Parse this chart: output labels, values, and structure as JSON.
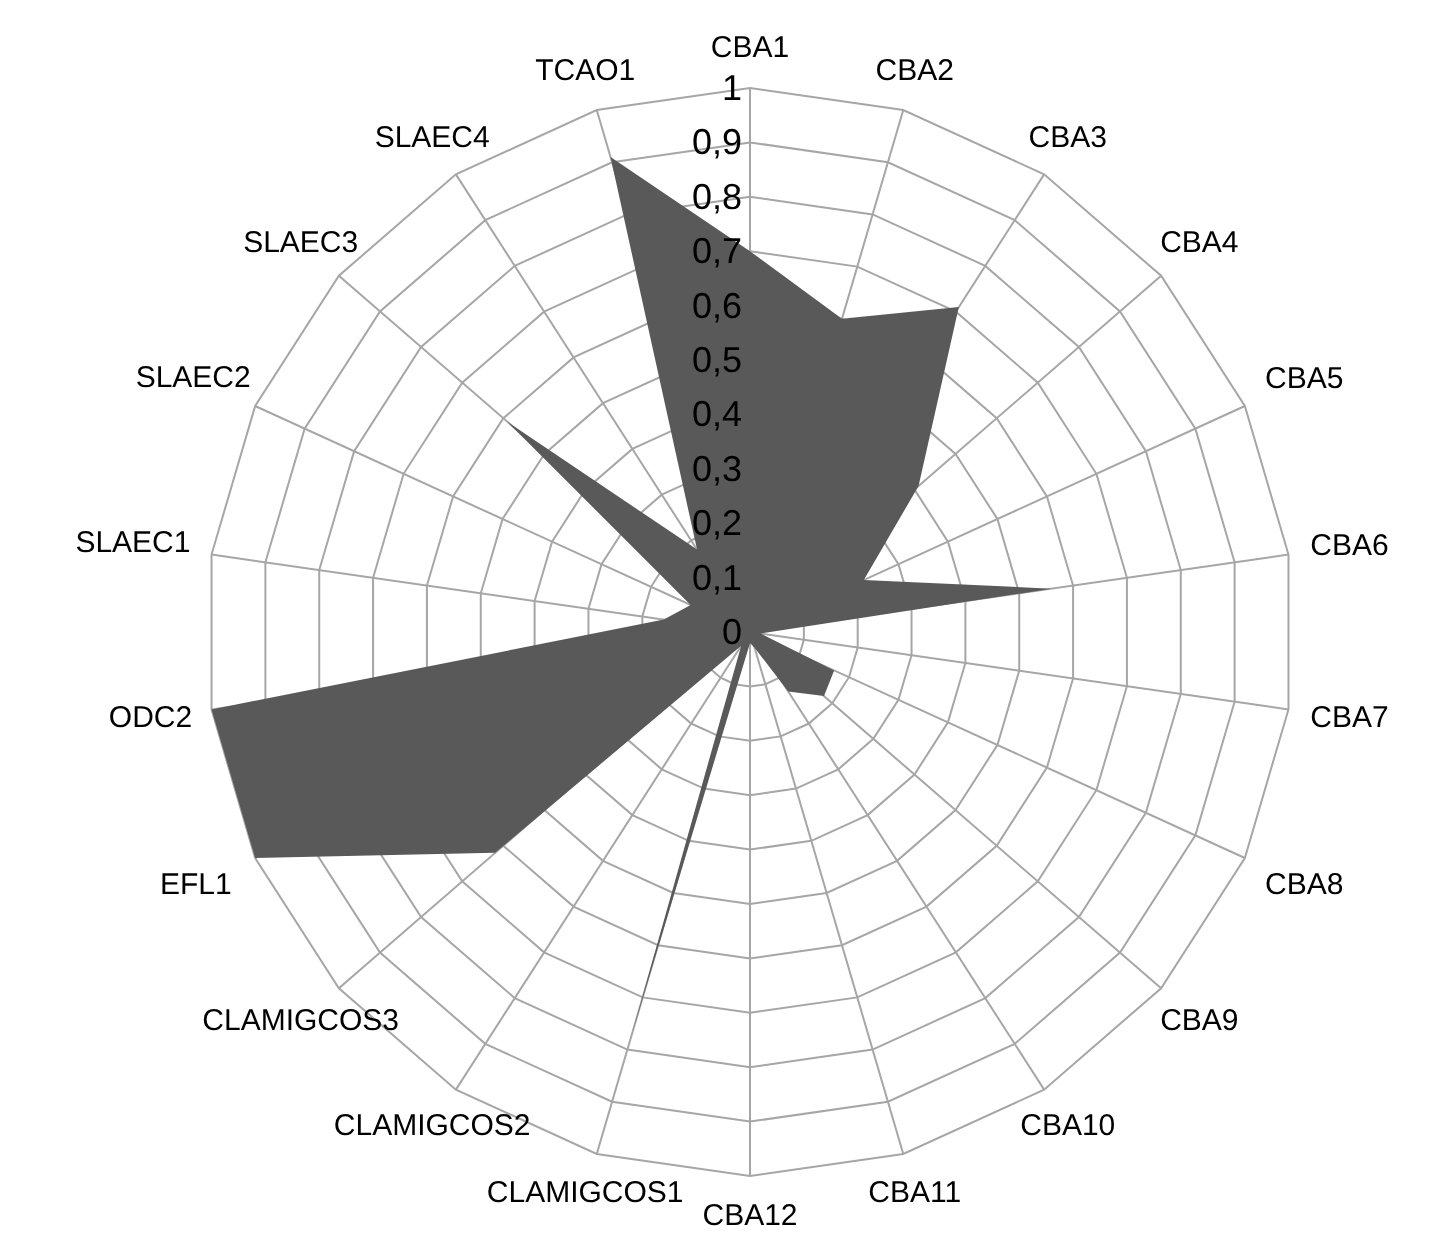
{
  "chart_data": {
    "type": "radar",
    "categories": [
      "CBA1",
      "CBA2",
      "CBA3",
      "CBA4",
      "CBA5",
      "CBA6",
      "CBA7",
      "CBA8",
      "CBA9",
      "CBA10",
      "CBA11",
      "CBA12",
      "CLAMIGCOS1",
      "CLAMIGCOS2",
      "CLAMIGCOS3",
      "EFL1",
      "ODC2",
      "SLAEC1",
      "SLAEC2",
      "SLAEC3",
      "SLAEC4",
      "TCAO1"
    ],
    "series": [
      {
        "color": "#595959",
        "values": [
          0.7,
          0.6,
          0.71,
          0.41,
          0.23,
          0.56,
          0.02,
          0.17,
          0.18,
          0.13,
          0.03,
          0.02,
          0.77,
          0.03,
          0.62,
          1,
          1,
          0.16,
          0.12,
          0.59,
          0.18,
          0.91
        ]
      }
    ],
    "ylim": [
      0,
      1
    ],
    "yticks": [
      {
        "value": 0,
        "label": "0"
      },
      {
        "value": 0.1,
        "label": "0,1"
      },
      {
        "value": 0.2,
        "label": "0,2"
      },
      {
        "value": 0.3,
        "label": "0,3"
      },
      {
        "value": 0.4,
        "label": "0,4"
      },
      {
        "value": 0.5,
        "label": "0,5"
      },
      {
        "value": 0.6,
        "label": "0,6"
      },
      {
        "value": 0.7,
        "label": "0,7"
      },
      {
        "value": 0.8,
        "label": "0,8"
      },
      {
        "value": 0.9,
        "label": "0,9"
      },
      {
        "value": 1,
        "label": "1"
      }
    ],
    "grid": true,
    "legend": false
  }
}
